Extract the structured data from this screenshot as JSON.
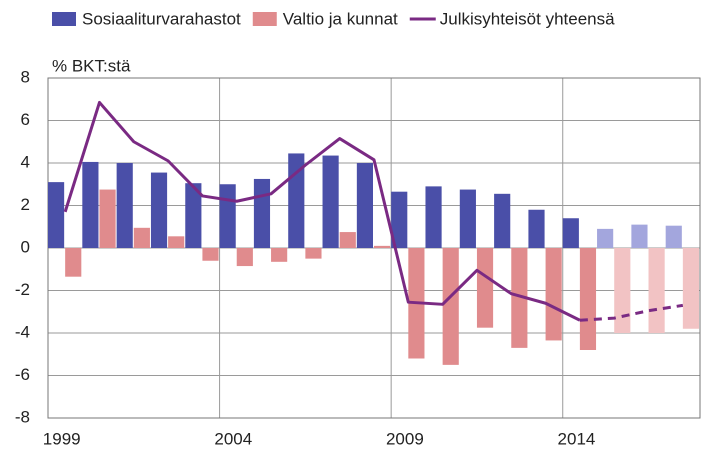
{
  "chart_data": {
    "type": "bar",
    "y_label": "% BKT:stä",
    "categories": [
      "1999",
      null,
      null,
      null,
      null,
      "2004",
      null,
      null,
      null,
      null,
      "2009",
      null,
      null,
      null,
      null,
      "2014",
      null,
      null,
      null
    ],
    "series": [
      {
        "name": "Sosiaaliturvarahastot",
        "type": "bar",
        "color": "#4a4fa8",
        "forecast_color": "#a3a6dd",
        "values": [
          3.1,
          4.05,
          4.0,
          3.55,
          3.05,
          3.0,
          3.25,
          4.45,
          4.35,
          4.0,
          2.65,
          2.9,
          2.75,
          2.55,
          1.8,
          1.4,
          0.9,
          1.1,
          1.05
        ]
      },
      {
        "name": "Valtio ja kunnat",
        "type": "bar",
        "color": "#e08b8d",
        "forecast_color": "#f2c3c4",
        "values": [
          -1.35,
          2.75,
          0.95,
          0.55,
          -0.6,
          -0.85,
          -0.65,
          -0.5,
          0.75,
          0.1,
          -5.2,
          -5.5,
          -3.75,
          -4.7,
          -4.35,
          -4.8,
          -4.0,
          -4.0,
          -3.8
        ]
      },
      {
        "name": "Julkisyhteisöt yhteensä",
        "type": "line",
        "color": "#7a2a83",
        "values": [
          1.7,
          6.85,
          5.0,
          4.1,
          2.45,
          2.2,
          2.55,
          3.9,
          5.15,
          4.15,
          -2.55,
          -2.65,
          -1.05,
          -2.15,
          -2.6,
          -3.4,
          -3.3,
          -2.95,
          -2.7
        ]
      }
    ],
    "forecast_start_index": 16,
    "ylim": [
      -8,
      8
    ],
    "yticks": [
      -8,
      -6,
      -4,
      -2,
      0,
      2,
      4,
      6,
      8
    ],
    "grid": true
  }
}
